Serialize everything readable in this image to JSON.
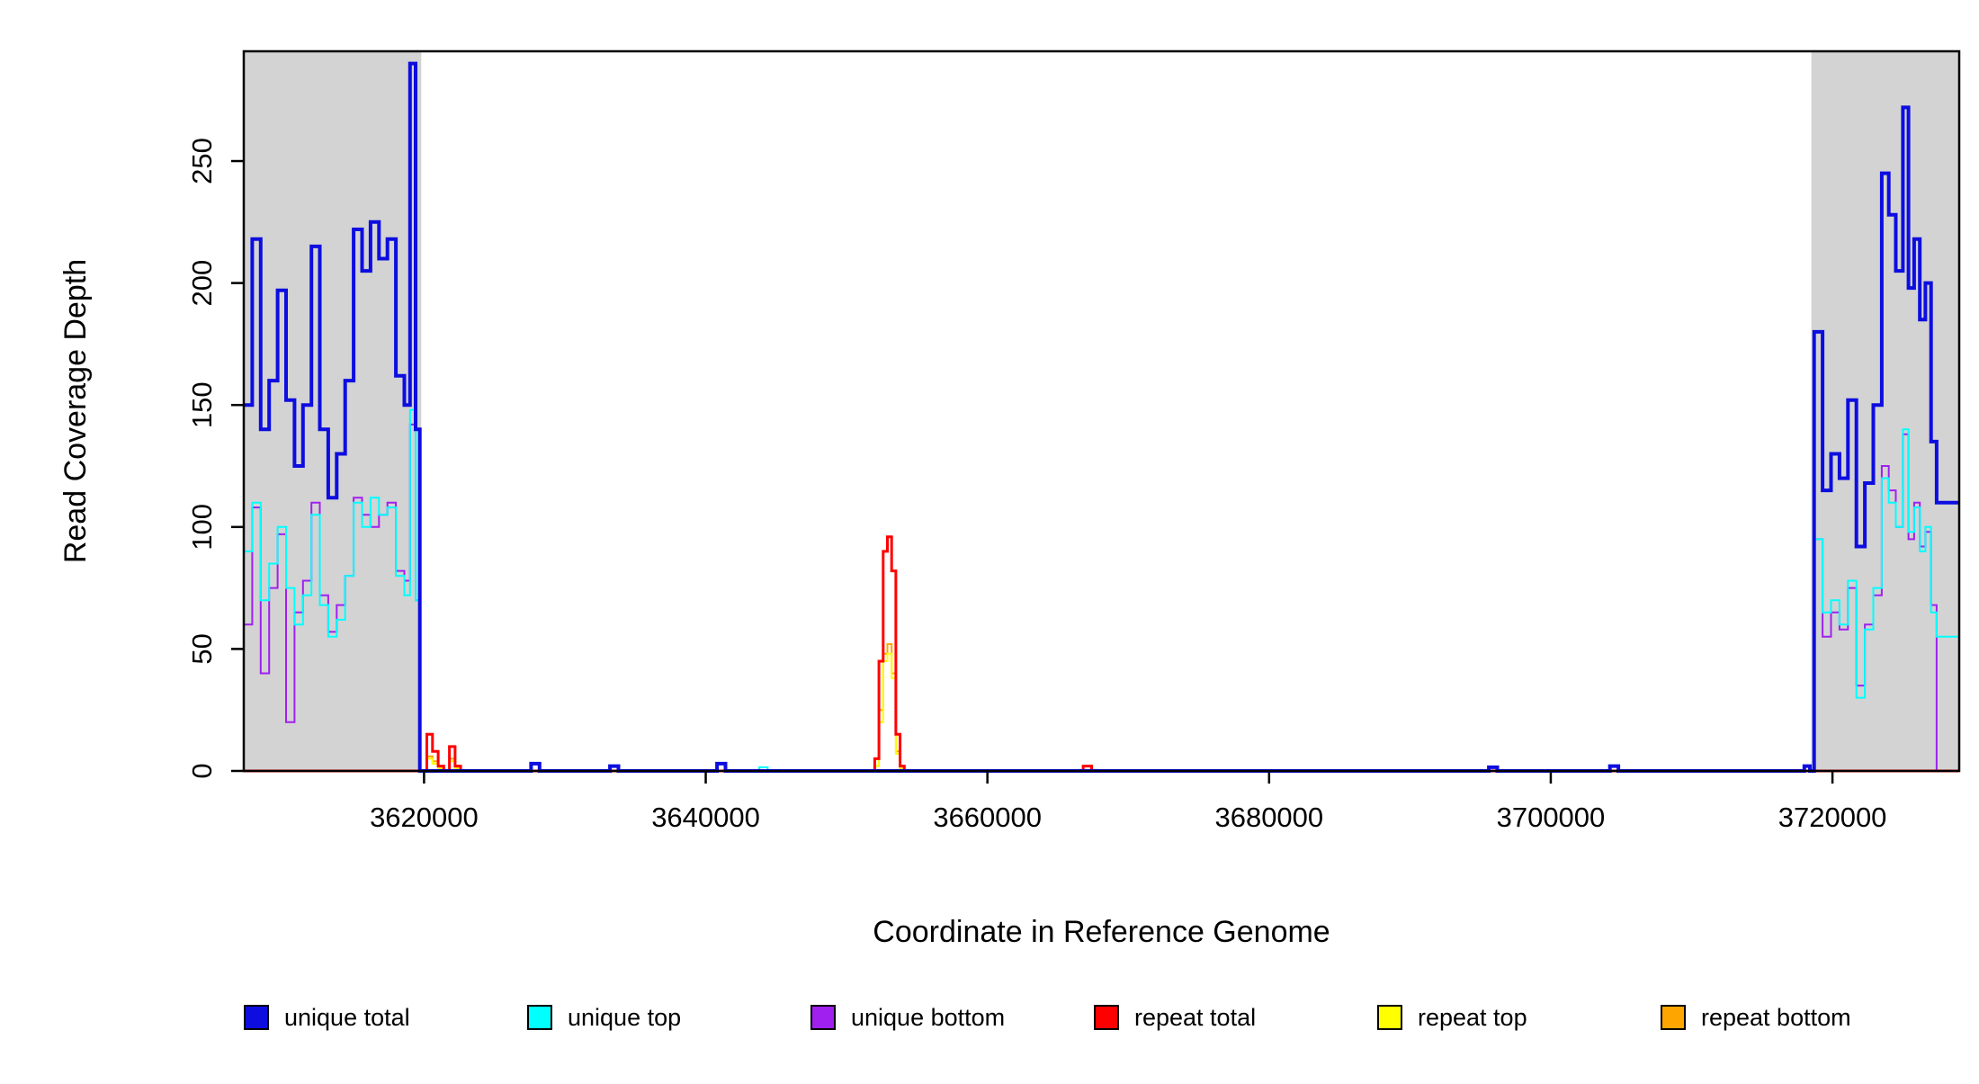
{
  "chart_data": {
    "type": "line",
    "title": "",
    "xlabel": "Coordinate in Reference Genome",
    "ylabel": "Read Coverage Depth",
    "xlim": [
      3607200,
      3729000
    ],
    "ylim": [
      0,
      295
    ],
    "xticks": [
      3620000,
      3640000,
      3660000,
      3680000,
      3700000,
      3720000
    ],
    "yticks": [
      0,
      50,
      100,
      150,
      200,
      250
    ],
    "grid": false,
    "legend_position": "bottom",
    "shaded_regions": [
      {
        "x0": 3607200,
        "x1": 3619800,
        "color": "#d3d3d3"
      },
      {
        "x0": 3718500,
        "x1": 3729000,
        "color": "#d3d3d3"
      }
    ],
    "series": [
      {
        "name": "repeat bottom",
        "color": "#FFA500",
        "width": 2,
        "steps": [
          [
            3607200,
            0
          ],
          [
            3620200,
            6
          ],
          [
            3620600,
            4
          ],
          [
            3621000,
            1
          ],
          [
            3621400,
            0
          ],
          [
            3621800,
            5
          ],
          [
            3622200,
            1
          ],
          [
            3622600,
            0
          ],
          [
            3652000,
            2
          ],
          [
            3652300,
            25
          ],
          [
            3652600,
            48
          ],
          [
            3652900,
            52
          ],
          [
            3653200,
            40
          ],
          [
            3653500,
            8
          ],
          [
            3653800,
            1
          ],
          [
            3654100,
            0
          ],
          [
            3729000,
            0
          ]
        ]
      },
      {
        "name": "repeat top",
        "color": "#FFFF00",
        "width": 2,
        "steps": [
          [
            3607200,
            0
          ],
          [
            3620200,
            5
          ],
          [
            3620600,
            3
          ],
          [
            3621000,
            1
          ],
          [
            3621400,
            0
          ],
          [
            3621800,
            4
          ],
          [
            3622200,
            1
          ],
          [
            3622600,
            0
          ],
          [
            3652000,
            2
          ],
          [
            3652300,
            20
          ],
          [
            3652600,
            45
          ],
          [
            3652900,
            48
          ],
          [
            3653200,
            38
          ],
          [
            3653500,
            7
          ],
          [
            3653800,
            1
          ],
          [
            3654100,
            0
          ],
          [
            3729000,
            0
          ]
        ]
      },
      {
        "name": "repeat total",
        "color": "#FF0000",
        "width": 3,
        "steps": [
          [
            3607200,
            0
          ],
          [
            3620200,
            15
          ],
          [
            3620600,
            8
          ],
          [
            3621000,
            2
          ],
          [
            3621400,
            0
          ],
          [
            3621800,
            10
          ],
          [
            3622200,
            2
          ],
          [
            3622600,
            0
          ],
          [
            3652000,
            5
          ],
          [
            3652300,
            45
          ],
          [
            3652600,
            90
          ],
          [
            3652900,
            96
          ],
          [
            3653200,
            82
          ],
          [
            3653500,
            15
          ],
          [
            3653800,
            2
          ],
          [
            3654100,
            0
          ],
          [
            3666800,
            2
          ],
          [
            3667400,
            0
          ],
          [
            3729000,
            0
          ]
        ]
      },
      {
        "name": "unique bottom",
        "color": "#A020F0",
        "width": 2,
        "steps": [
          [
            3607200,
            60
          ],
          [
            3607800,
            108
          ],
          [
            3608400,
            40
          ],
          [
            3609000,
            75
          ],
          [
            3609600,
            97
          ],
          [
            3610200,
            20
          ],
          [
            3610800,
            65
          ],
          [
            3611400,
            78
          ],
          [
            3612000,
            110
          ],
          [
            3612600,
            72
          ],
          [
            3613200,
            57
          ],
          [
            3613800,
            68
          ],
          [
            3614400,
            80
          ],
          [
            3615000,
            112
          ],
          [
            3615600,
            105
          ],
          [
            3616200,
            100
          ],
          [
            3616800,
            105
          ],
          [
            3617400,
            110
          ],
          [
            3618000,
            82
          ],
          [
            3618600,
            78
          ],
          [
            3619000,
            142
          ],
          [
            3619400,
            70
          ],
          [
            3619700,
            0
          ],
          [
            3718700,
            95
          ],
          [
            3719300,
            55
          ],
          [
            3719900,
            65
          ],
          [
            3720500,
            58
          ],
          [
            3721100,
            75
          ],
          [
            3721700,
            35
          ],
          [
            3722300,
            60
          ],
          [
            3722900,
            72
          ],
          [
            3723500,
            125
          ],
          [
            3724000,
            115
          ],
          [
            3724500,
            100
          ],
          [
            3725000,
            138
          ],
          [
            3725400,
            95
          ],
          [
            3725800,
            110
          ],
          [
            3726200,
            92
          ],
          [
            3726600,
            98
          ],
          [
            3727000,
            68
          ],
          [
            3727400,
            0
          ],
          [
            3729000,
            0
          ]
        ]
      },
      {
        "name": "unique top",
        "color": "#00FFFF",
        "width": 2,
        "steps": [
          [
            3607200,
            90
          ],
          [
            3607800,
            110
          ],
          [
            3608400,
            70
          ],
          [
            3609000,
            85
          ],
          [
            3609600,
            100
          ],
          [
            3610200,
            75
          ],
          [
            3610800,
            60
          ],
          [
            3611400,
            72
          ],
          [
            3612000,
            105
          ],
          [
            3612600,
            68
          ],
          [
            3613200,
            55
          ],
          [
            3613800,
            62
          ],
          [
            3614400,
            80
          ],
          [
            3615000,
            110
          ],
          [
            3615600,
            100
          ],
          [
            3616200,
            112
          ],
          [
            3616800,
            105
          ],
          [
            3617400,
            108
          ],
          [
            3618000,
            80
          ],
          [
            3618600,
            72
          ],
          [
            3619000,
            148
          ],
          [
            3619400,
            70
          ],
          [
            3619700,
            0
          ],
          [
            3643800,
            1.5
          ],
          [
            3644400,
            0
          ],
          [
            3718700,
            95
          ],
          [
            3719300,
            65
          ],
          [
            3719900,
            70
          ],
          [
            3720500,
            60
          ],
          [
            3721100,
            78
          ],
          [
            3721700,
            30
          ],
          [
            3722300,
            58
          ],
          [
            3722900,
            75
          ],
          [
            3723500,
            120
          ],
          [
            3724000,
            110
          ],
          [
            3724500,
            100
          ],
          [
            3725000,
            140
          ],
          [
            3725400,
            98
          ],
          [
            3725800,
            108
          ],
          [
            3726200,
            90
          ],
          [
            3726600,
            100
          ],
          [
            3727000,
            65
          ],
          [
            3727400,
            55
          ],
          [
            3729000,
            55
          ]
        ]
      },
      {
        "name": "unique total",
        "color": "#0D0DE0",
        "width": 4,
        "steps": [
          [
            3607200,
            150
          ],
          [
            3607800,
            218
          ],
          [
            3608400,
            140
          ],
          [
            3609000,
            160
          ],
          [
            3609600,
            197
          ],
          [
            3610200,
            152
          ],
          [
            3610800,
            125
          ],
          [
            3611400,
            150
          ],
          [
            3612000,
            215
          ],
          [
            3612600,
            140
          ],
          [
            3613200,
            112
          ],
          [
            3613800,
            130
          ],
          [
            3614400,
            160
          ],
          [
            3615000,
            222
          ],
          [
            3615600,
            205
          ],
          [
            3616200,
            225
          ],
          [
            3616800,
            210
          ],
          [
            3617400,
            218
          ],
          [
            3618000,
            162
          ],
          [
            3618600,
            150
          ],
          [
            3619000,
            290
          ],
          [
            3619400,
            140
          ],
          [
            3619700,
            0
          ],
          [
            3627600,
            3
          ],
          [
            3628200,
            0
          ],
          [
            3633200,
            2
          ],
          [
            3633800,
            0
          ],
          [
            3640800,
            3
          ],
          [
            3641400,
            0
          ],
          [
            3695600,
            1.5
          ],
          [
            3696200,
            0
          ],
          [
            3704200,
            2
          ],
          [
            3704800,
            0
          ],
          [
            3718000,
            2
          ],
          [
            3718400,
            0
          ],
          [
            3718700,
            180
          ],
          [
            3719300,
            115
          ],
          [
            3719900,
            130
          ],
          [
            3720500,
            120
          ],
          [
            3721100,
            152
          ],
          [
            3721700,
            92
          ],
          [
            3722300,
            118
          ],
          [
            3722900,
            150
          ],
          [
            3723500,
            245
          ],
          [
            3724000,
            228
          ],
          [
            3724500,
            205
          ],
          [
            3725000,
            272
          ],
          [
            3725400,
            198
          ],
          [
            3725800,
            218
          ],
          [
            3726200,
            185
          ],
          [
            3726600,
            200
          ],
          [
            3727000,
            135
          ],
          [
            3727400,
            110
          ],
          [
            3729000,
            110
          ]
        ]
      }
    ],
    "legend": [
      {
        "label": "unique total",
        "color": "#0D0DE0"
      },
      {
        "label": "unique top",
        "color": "#00FFFF"
      },
      {
        "label": "unique bottom",
        "color": "#A020F0"
      },
      {
        "label": "repeat total",
        "color": "#FF0000"
      },
      {
        "label": "repeat top",
        "color": "#FFFF00"
      },
      {
        "label": "repeat bottom",
        "color": "#FFA500"
      }
    ]
  }
}
